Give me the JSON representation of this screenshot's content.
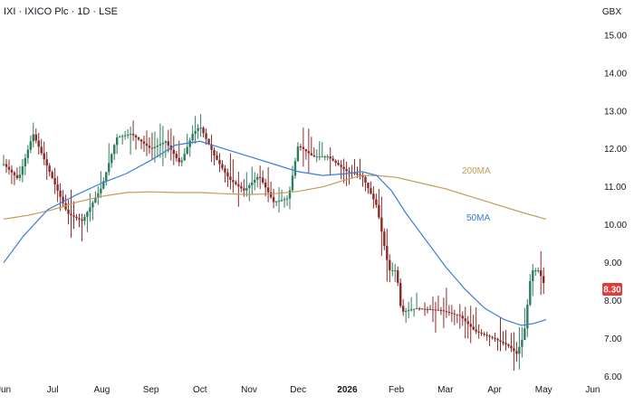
{
  "header": {
    "title": "IXI · IXICO Plc · 1D · LSE",
    "currency": "GBX"
  },
  "chart_data": {
    "type": "candlestick",
    "x_ticks": [
      "Jun",
      "Jul",
      "Aug",
      "Sep",
      "Oct",
      "Nov",
      "Dec",
      "2026",
      "Feb",
      "Mar",
      "Apr",
      "May",
      "Jun"
    ],
    "y_ticks": [
      "6.00",
      "7.00",
      "8.00",
      "9.00",
      "10.00",
      "11.00",
      "12.00",
      "13.00",
      "14.00",
      "15.00"
    ],
    "ylim": [
      5.8,
      15.4
    ],
    "last_price": "8.30",
    "colors": {
      "up": "#2e7d5b",
      "down": "#8b2a2a",
      "ma50": "#3b7dd8",
      "ma200": "#c79a5b",
      "last": "#e53935"
    },
    "annotations": [
      {
        "text": "200MA",
        "color": "#c79a5b"
      },
      {
        "text": "50MA",
        "color": "#3b7dd8"
      }
    ],
    "price_path": [
      [
        0,
        11.6
      ],
      [
        0.3,
        11.2
      ],
      [
        0.6,
        12.4
      ],
      [
        1.0,
        11.2
      ],
      [
        1.3,
        10.3
      ],
      [
        1.6,
        10.1
      ],
      [
        2.0,
        11.0
      ],
      [
        2.3,
        12.3
      ],
      [
        2.6,
        12.4
      ],
      [
        3.0,
        12.0
      ],
      [
        3.3,
        12.2
      ],
      [
        3.6,
        11.6
      ],
      [
        3.85,
        12.4
      ],
      [
        4.0,
        12.6
      ],
      [
        4.3,
        11.8
      ],
      [
        4.6,
        11.2
      ],
      [
        4.9,
        10.9
      ],
      [
        5.2,
        11.3
      ],
      [
        5.5,
        10.6
      ],
      [
        5.8,
        10.7
      ],
      [
        6.0,
        12.1
      ],
      [
        6.3,
        11.8
      ],
      [
        6.6,
        11.8
      ],
      [
        7.0,
        11.4
      ],
      [
        7.3,
        11.3
      ],
      [
        7.6,
        10.5
      ],
      [
        7.85,
        8.8
      ],
      [
        8.0,
        8.8
      ],
      [
        8.1,
        7.7
      ],
      [
        8.4,
        7.8
      ],
      [
        8.9,
        7.75
      ],
      [
        9.3,
        7.6
      ],
      [
        9.6,
        7.2
      ],
      [
        10.0,
        7.0
      ],
      [
        10.3,
        6.8
      ],
      [
        10.45,
        6.6
      ],
      [
        10.6,
        7.1
      ],
      [
        10.75,
        8.8
      ],
      [
        10.9,
        8.8
      ],
      [
        11.05,
        8.3
      ]
    ],
    "ma50_path": [
      [
        0,
        9.0
      ],
      [
        0.4,
        9.7
      ],
      [
        0.9,
        10.4
      ],
      [
        1.5,
        10.8
      ],
      [
        2.0,
        11.1
      ],
      [
        2.5,
        11.35
      ],
      [
        3.0,
        11.7
      ],
      [
        3.5,
        12.1
      ],
      [
        4.0,
        12.2
      ],
      [
        4.5,
        12.0
      ],
      [
        5.0,
        11.8
      ],
      [
        5.5,
        11.6
      ],
      [
        6.0,
        11.4
      ],
      [
        6.5,
        11.3
      ],
      [
        7.0,
        11.35
      ],
      [
        7.3,
        11.4
      ],
      [
        7.6,
        11.3
      ],
      [
        7.9,
        10.9
      ],
      [
        8.2,
        10.3
      ],
      [
        8.6,
        9.6
      ],
      [
        9.0,
        8.9
      ],
      [
        9.4,
        8.3
      ],
      [
        9.8,
        7.8
      ],
      [
        10.2,
        7.5
      ],
      [
        10.55,
        7.35
      ],
      [
        10.8,
        7.4
      ],
      [
        11.05,
        7.5
      ]
    ],
    "ma200_path": [
      [
        0,
        10.15
      ],
      [
        0.5,
        10.25
      ],
      [
        1.0,
        10.4
      ],
      [
        1.5,
        10.6
      ],
      [
        2.0,
        10.75
      ],
      [
        2.5,
        10.85
      ],
      [
        3.0,
        10.87
      ],
      [
        3.5,
        10.85
      ],
      [
        4.0,
        10.85
      ],
      [
        4.5,
        10.82
      ],
      [
        5.0,
        10.8
      ],
      [
        5.5,
        10.82
      ],
      [
        6.0,
        10.88
      ],
      [
        6.5,
        11.0
      ],
      [
        7.0,
        11.2
      ],
      [
        7.3,
        11.3
      ],
      [
        7.6,
        11.3
      ],
      [
        8.0,
        11.25
      ],
      [
        8.5,
        11.1
      ],
      [
        9.0,
        10.95
      ],
      [
        9.5,
        10.75
      ],
      [
        10.0,
        10.55
      ],
      [
        10.5,
        10.35
      ],
      [
        11.05,
        10.15
      ]
    ]
  }
}
